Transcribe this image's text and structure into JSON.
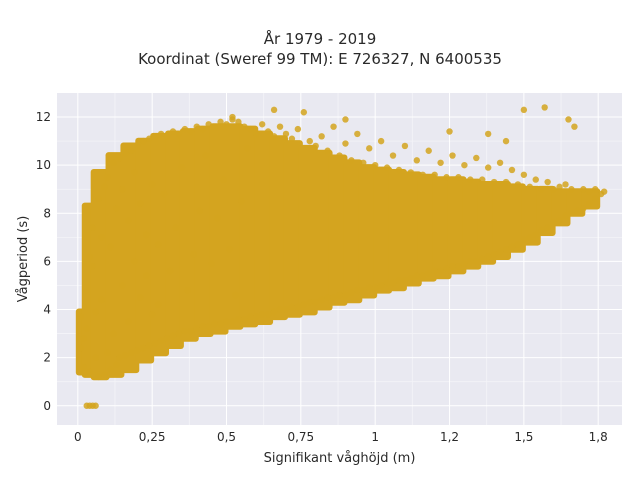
{
  "chart_data": {
    "type": "scatter",
    "title_line1": "År 1979 - 2019",
    "title_line2": "Koordinat (Sweref 99 TM): E 726327, N 6400535",
    "xlabel": "Signifikant våghöjd (m)",
    "ylabel": "Vågperiod (s)",
    "xlim": [
      -0.07,
      1.83
    ],
    "ylim": [
      -0.8,
      13.0
    ],
    "x_ticks": [
      0,
      0.25,
      0.5,
      0.75,
      1,
      1.25,
      1.5,
      1.75
    ],
    "x_tick_labels": [
      "0",
      "0,25",
      "0,5",
      "0,75",
      "1",
      "1,2",
      "1,5",
      "1,8"
    ],
    "y_ticks": [
      0,
      2,
      4,
      6,
      8,
      10,
      12
    ],
    "y_tick_labels": [
      "0",
      "2",
      "4",
      "6",
      "8",
      "10",
      "12"
    ],
    "grid": true,
    "colors": {
      "marker": "#d4a41f",
      "background": "#e9e9f1",
      "grid": "#ffffff"
    },
    "points": [
      [
        0.03,
        0.0
      ],
      [
        0.04,
        0.0
      ],
      [
        0.05,
        0.0
      ],
      [
        0.06,
        0.0
      ],
      [
        0.01,
        2.4
      ],
      [
        0.01,
        3.7
      ],
      [
        0.02,
        1.6
      ],
      [
        0.02,
        2.8
      ],
      [
        0.03,
        3.2
      ],
      [
        0.03,
        4.8
      ],
      [
        0.04,
        1.4
      ],
      [
        0.04,
        6.2
      ],
      [
        0.05,
        5.8
      ],
      [
        0.05,
        7.4
      ],
      [
        0.06,
        2.0
      ],
      [
        0.06,
        3.9
      ],
      [
        0.07,
        1.2
      ],
      [
        0.07,
        8.6
      ],
      [
        0.08,
        4.4
      ],
      [
        0.08,
        7.0
      ],
      [
        0.09,
        1.3
      ],
      [
        0.09,
        9.1
      ],
      [
        0.1,
        2.2
      ],
      [
        0.1,
        9.5
      ],
      [
        0.11,
        1.5
      ],
      [
        0.11,
        6.6
      ],
      [
        0.12,
        3.0
      ],
      [
        0.12,
        10.1
      ],
      [
        0.13,
        1.7
      ],
      [
        0.13,
        8.2
      ],
      [
        0.14,
        2.0
      ],
      [
        0.14,
        10.3
      ],
      [
        0.15,
        5.0
      ],
      [
        0.15,
        9.0
      ],
      [
        0.16,
        2.1
      ],
      [
        0.16,
        10.5
      ],
      [
        0.17,
        7.7
      ],
      [
        0.17,
        3.5
      ],
      [
        0.18,
        2.2
      ],
      [
        0.18,
        10.6
      ],
      [
        0.19,
        6.0
      ],
      [
        0.19,
        9.7
      ],
      [
        0.2,
        2.3
      ],
      [
        0.2,
        10.8
      ],
      [
        0.21,
        4.5
      ],
      [
        0.21,
        8.4
      ],
      [
        0.22,
        2.4
      ],
      [
        0.22,
        11.0
      ],
      [
        0.23,
        7.1
      ],
      [
        0.23,
        5.4
      ],
      [
        0.24,
        2.5
      ],
      [
        0.24,
        11.1
      ],
      [
        0.25,
        9.2
      ],
      [
        0.25,
        3.8
      ],
      [
        0.26,
        2.6
      ],
      [
        0.26,
        11.2
      ],
      [
        0.27,
        6.7
      ],
      [
        0.27,
        4.2
      ],
      [
        0.28,
        2.7
      ],
      [
        0.28,
        11.3
      ],
      [
        0.29,
        8.8
      ],
      [
        0.3,
        2.8
      ],
      [
        0.3,
        11.2
      ],
      [
        0.31,
        5.6
      ],
      [
        0.32,
        2.9
      ],
      [
        0.32,
        11.4
      ],
      [
        0.33,
        7.4
      ],
      [
        0.34,
        3.0
      ],
      [
        0.34,
        11.3
      ],
      [
        0.35,
        9.9
      ],
      [
        0.36,
        3.1
      ],
      [
        0.36,
        11.5
      ],
      [
        0.37,
        4.8
      ],
      [
        0.38,
        3.1
      ],
      [
        0.38,
        11.4
      ],
      [
        0.39,
        6.3
      ],
      [
        0.4,
        3.2
      ],
      [
        0.4,
        11.6
      ],
      [
        0.41,
        8.1
      ],
      [
        0.42,
        3.3
      ],
      [
        0.42,
        11.5
      ],
      [
        0.43,
        10.4
      ],
      [
        0.44,
        3.3
      ],
      [
        0.44,
        11.7
      ],
      [
        0.45,
        5.9
      ],
      [
        0.46,
        3.4
      ],
      [
        0.46,
        11.6
      ],
      [
        0.47,
        7.8
      ],
      [
        0.48,
        3.4
      ],
      [
        0.48,
        11.8
      ],
      [
        0.49,
        9.4
      ],
      [
        0.5,
        3.5
      ],
      [
        0.5,
        11.7
      ],
      [
        0.51,
        6.5
      ],
      [
        0.52,
        3.5
      ],
      [
        0.52,
        11.9
      ],
      [
        0.53,
        4.6
      ],
      [
        0.54,
        3.6
      ],
      [
        0.54,
        11.8
      ],
      [
        0.55,
        8.5
      ],
      [
        0.56,
        3.6
      ],
      [
        0.56,
        11.6
      ],
      [
        0.57,
        10.7
      ],
      [
        0.58,
        3.7
      ],
      [
        0.58,
        11.5
      ],
      [
        0.6,
        3.7
      ],
      [
        0.6,
        11.3
      ],
      [
        0.62,
        3.8
      ],
      [
        0.62,
        11.7
      ],
      [
        0.64,
        3.8
      ],
      [
        0.64,
        11.4
      ],
      [
        0.66,
        3.9
      ],
      [
        0.66,
        11.2
      ],
      [
        0.68,
        4.0
      ],
      [
        0.68,
        11.6
      ],
      [
        0.7,
        4.0
      ],
      [
        0.7,
        11.3
      ],
      [
        0.72,
        4.1
      ],
      [
        0.72,
        11.1
      ],
      [
        0.74,
        4.1
      ],
      [
        0.74,
        11.5
      ],
      [
        0.76,
        4.2
      ],
      [
        0.76,
        12.2
      ],
      [
        0.78,
        4.3
      ],
      [
        0.78,
        11.0
      ],
      [
        0.8,
        4.3
      ],
      [
        0.8,
        10.8
      ],
      [
        0.82,
        4.4
      ],
      [
        0.82,
        11.2
      ],
      [
        0.84,
        4.5
      ],
      [
        0.84,
        10.6
      ],
      [
        0.86,
        4.5
      ],
      [
        0.86,
        11.6
      ],
      [
        0.88,
        4.6
      ],
      [
        0.88,
        10.4
      ],
      [
        0.9,
        4.6
      ],
      [
        0.9,
        10.9
      ],
      [
        0.92,
        4.7
      ],
      [
        0.92,
        10.2
      ],
      [
        0.94,
        4.8
      ],
      [
        0.94,
        11.3
      ],
      [
        0.96,
        4.8
      ],
      [
        0.96,
        10.1
      ],
      [
        0.98,
        4.9
      ],
      [
        0.98,
        10.7
      ],
      [
        1.0,
        4.9
      ],
      [
        1.0,
        10.0
      ],
      [
        1.02,
        5.0
      ],
      [
        1.02,
        11.0
      ],
      [
        1.04,
        5.1
      ],
      [
        1.04,
        9.9
      ],
      [
        1.06,
        5.1
      ],
      [
        1.06,
        10.4
      ],
      [
        1.08,
        5.2
      ],
      [
        1.08,
        9.8
      ],
      [
        1.1,
        5.2
      ],
      [
        1.1,
        10.8
      ],
      [
        1.12,
        5.3
      ],
      [
        1.12,
        9.7
      ],
      [
        1.14,
        5.4
      ],
      [
        1.14,
        10.2
      ],
      [
        1.16,
        5.4
      ],
      [
        1.16,
        9.6
      ],
      [
        1.18,
        5.5
      ],
      [
        1.18,
        10.6
      ],
      [
        1.2,
        5.6
      ],
      [
        1.2,
        9.6
      ],
      [
        1.22,
        5.6
      ],
      [
        1.22,
        10.1
      ],
      [
        1.24,
        5.7
      ],
      [
        1.24,
        9.5
      ],
      [
        1.26,
        5.8
      ],
      [
        1.26,
        10.4
      ],
      [
        1.28,
        5.8
      ],
      [
        1.28,
        9.5
      ],
      [
        1.3,
        5.9
      ],
      [
        1.3,
        10.0
      ],
      [
        1.32,
        6.0
      ],
      [
        1.32,
        9.4
      ],
      [
        1.34,
        6.0
      ],
      [
        1.34,
        10.3
      ],
      [
        1.36,
        6.1
      ],
      [
        1.36,
        9.4
      ],
      [
        1.38,
        6.2
      ],
      [
        1.38,
        9.9
      ],
      [
        1.4,
        6.3
      ],
      [
        1.4,
        9.3
      ],
      [
        1.42,
        6.4
      ],
      [
        1.42,
        10.1
      ],
      [
        1.44,
        6.5
      ],
      [
        1.44,
        9.3
      ],
      [
        1.46,
        6.6
      ],
      [
        1.46,
        9.8
      ],
      [
        1.48,
        6.7
      ],
      [
        1.48,
        9.2
      ],
      [
        1.5,
        6.9
      ],
      [
        1.5,
        9.6
      ],
      [
        1.52,
        7.0
      ],
      [
        1.52,
        9.1
      ],
      [
        1.54,
        7.1
      ],
      [
        1.54,
        9.4
      ],
      [
        1.56,
        7.3
      ],
      [
        1.56,
        9.0
      ],
      [
        1.58,
        7.4
      ],
      [
        1.58,
        9.3
      ],
      [
        1.6,
        7.6
      ],
      [
        1.6,
        9.0
      ],
      [
        1.62,
        7.7
      ],
      [
        1.62,
        9.1
      ],
      [
        1.64,
        7.9
      ],
      [
        1.64,
        9.2
      ],
      [
        1.66,
        8.0
      ],
      [
        1.66,
        9.0
      ],
      [
        1.68,
        8.1
      ],
      [
        1.7,
        8.2
      ],
      [
        1.7,
        9.0
      ],
      [
        1.72,
        8.4
      ],
      [
        1.72,
        8.9
      ],
      [
        1.74,
        8.6
      ],
      [
        1.74,
        9.0
      ],
      [
        1.76,
        8.8
      ],
      [
        1.77,
        8.9
      ],
      [
        1.5,
        12.3
      ],
      [
        1.57,
        12.4
      ],
      [
        1.65,
        11.9
      ],
      [
        1.67,
        11.6
      ],
      [
        0.66,
        12.3
      ],
      [
        1.25,
        11.4
      ],
      [
        1.38,
        11.3
      ],
      [
        1.44,
        11.0
      ],
      [
        0.52,
        12.0
      ],
      [
        0.9,
        11.9
      ]
    ],
    "bands": [
      {
        "x0": 0.0,
        "x1": 0.03,
        "y0": 1.3,
        "y1": 4.0
      },
      {
        "x0": 0.02,
        "x1": 0.05,
        "y0": 1.2,
        "y1": 8.4
      },
      {
        "x0": 0.05,
        "x1": 0.1,
        "y0": 1.1,
        "y1": 9.8
      },
      {
        "x0": 0.1,
        "x1": 0.15,
        "y0": 1.2,
        "y1": 10.5
      },
      {
        "x0": 0.15,
        "x1": 0.2,
        "y0": 1.4,
        "y1": 10.9
      },
      {
        "x0": 0.2,
        "x1": 0.25,
        "y0": 1.8,
        "y1": 11.1
      },
      {
        "x0": 0.25,
        "x1": 0.3,
        "y0": 2.1,
        "y1": 11.3
      },
      {
        "x0": 0.3,
        "x1": 0.35,
        "y0": 2.4,
        "y1": 11.4
      },
      {
        "x0": 0.35,
        "x1": 0.4,
        "y0": 2.7,
        "y1": 11.5
      },
      {
        "x0": 0.4,
        "x1": 0.45,
        "y0": 2.9,
        "y1": 11.6
      },
      {
        "x0": 0.45,
        "x1": 0.5,
        "y0": 3.0,
        "y1": 11.7
      },
      {
        "x0": 0.5,
        "x1": 0.55,
        "y0": 3.2,
        "y1": 11.7
      },
      {
        "x0": 0.55,
        "x1": 0.6,
        "y0": 3.3,
        "y1": 11.6
      },
      {
        "x0": 0.6,
        "x1": 0.65,
        "y0": 3.4,
        "y1": 11.4
      },
      {
        "x0": 0.65,
        "x1": 0.7,
        "y0": 3.6,
        "y1": 11.2
      },
      {
        "x0": 0.7,
        "x1": 0.75,
        "y0": 3.7,
        "y1": 11.0
      },
      {
        "x0": 0.75,
        "x1": 0.8,
        "y0": 3.8,
        "y1": 10.8
      },
      {
        "x0": 0.8,
        "x1": 0.85,
        "y0": 4.0,
        "y1": 10.6
      },
      {
        "x0": 0.85,
        "x1": 0.9,
        "y0": 4.2,
        "y1": 10.4
      },
      {
        "x0": 0.9,
        "x1": 0.95,
        "y0": 4.3,
        "y1": 10.2
      },
      {
        "x0": 0.95,
        "x1": 1.0,
        "y0": 4.5,
        "y1": 10.0
      },
      {
        "x0": 1.0,
        "x1": 1.05,
        "y0": 4.7,
        "y1": 9.9
      },
      {
        "x0": 1.05,
        "x1": 1.1,
        "y0": 4.8,
        "y1": 9.8
      },
      {
        "x0": 1.1,
        "x1": 1.15,
        "y0": 5.0,
        "y1": 9.7
      },
      {
        "x0": 1.15,
        "x1": 1.2,
        "y0": 5.2,
        "y1": 9.6
      },
      {
        "x0": 1.2,
        "x1": 1.25,
        "y0": 5.3,
        "y1": 9.5
      },
      {
        "x0": 1.25,
        "x1": 1.3,
        "y0": 5.5,
        "y1": 9.5
      },
      {
        "x0": 1.3,
        "x1": 1.35,
        "y0": 5.7,
        "y1": 9.4
      },
      {
        "x0": 1.35,
        "x1": 1.4,
        "y0": 5.9,
        "y1": 9.3
      },
      {
        "x0": 1.4,
        "x1": 1.45,
        "y0": 6.1,
        "y1": 9.3
      },
      {
        "x0": 1.45,
        "x1": 1.5,
        "y0": 6.4,
        "y1": 9.2
      },
      {
        "x0": 1.5,
        "x1": 1.55,
        "y0": 6.7,
        "y1": 9.1
      },
      {
        "x0": 1.55,
        "x1": 1.6,
        "y0": 7.1,
        "y1": 9.1
      },
      {
        "x0": 1.6,
        "x1": 1.65,
        "y0": 7.5,
        "y1": 9.0
      },
      {
        "x0": 1.65,
        "x1": 1.7,
        "y0": 7.9,
        "y1": 9.0
      },
      {
        "x0": 1.7,
        "x1": 1.75,
        "y0": 8.2,
        "y1": 9.0
      }
    ]
  }
}
